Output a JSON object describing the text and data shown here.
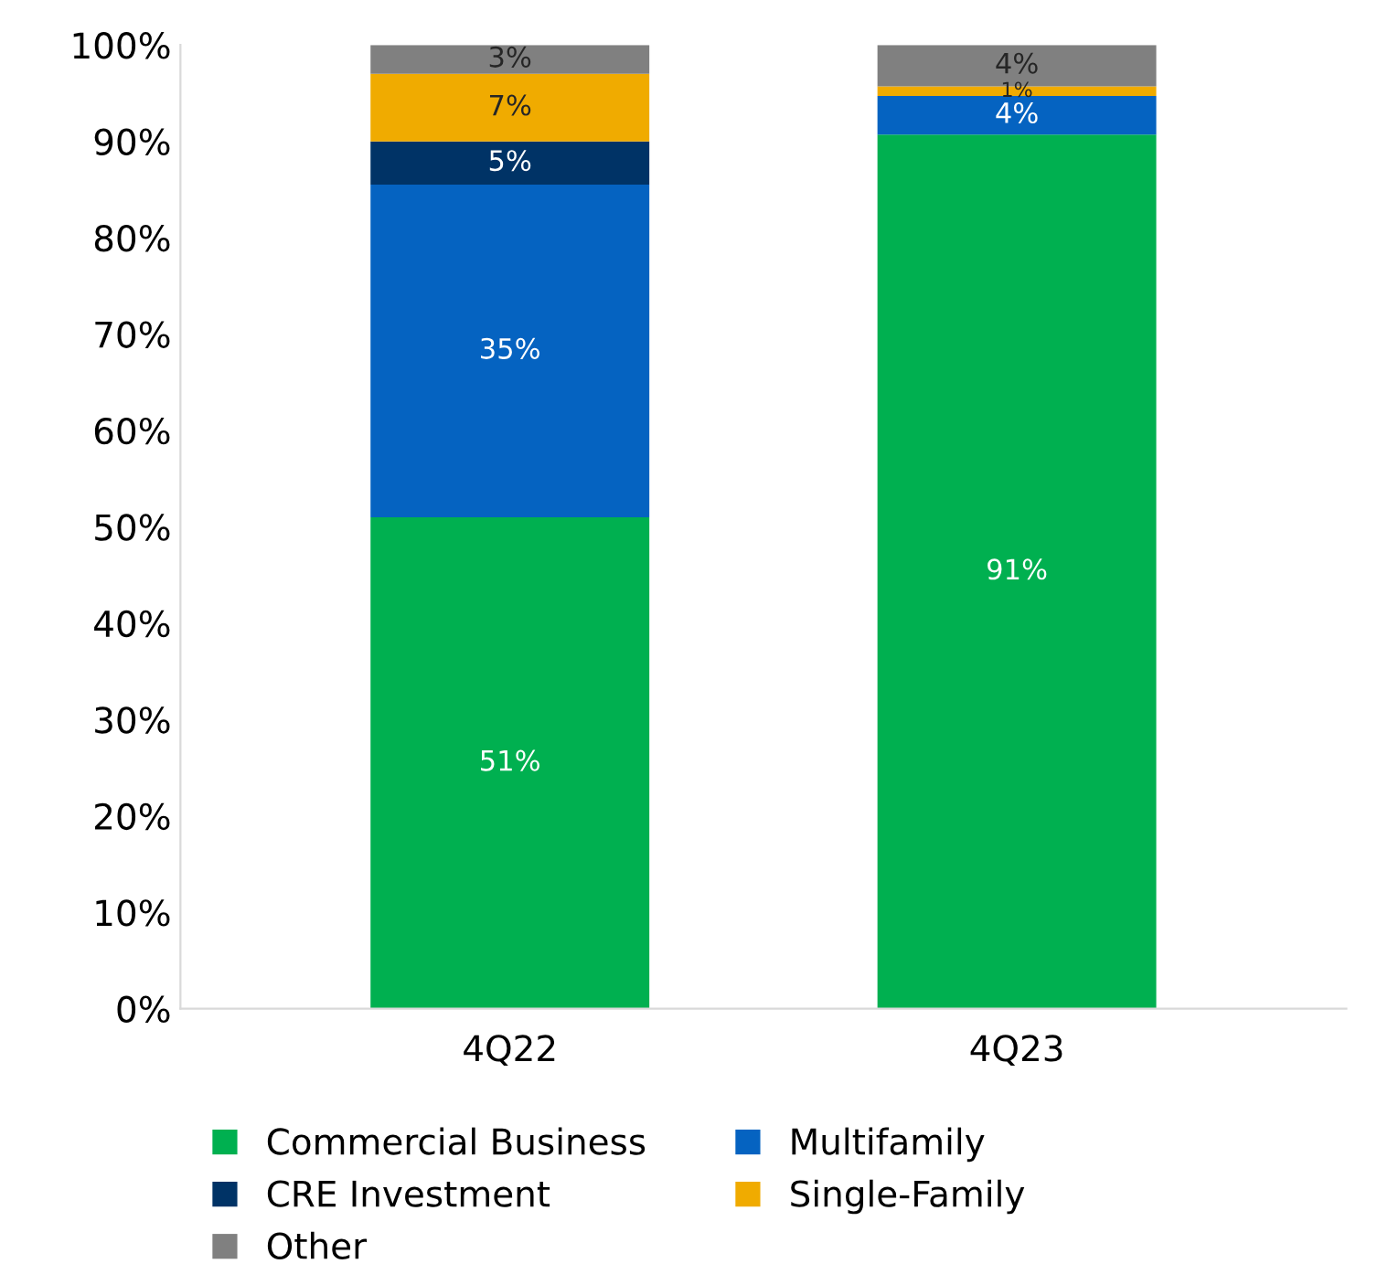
{
  "chart_data": {
    "type": "bar",
    "stacked": true,
    "categories": [
      "4Q22",
      "4Q23"
    ],
    "series": [
      {
        "name": "Commercial Business",
        "color": "#00b050",
        "values": [
          51,
          90.7
        ],
        "value_labels": [
          "51%",
          "91%"
        ]
      },
      {
        "name": "Multifamily",
        "color": "#0563c1",
        "values": [
          34.5,
          4
        ],
        "value_labels": [
          "35%",
          "4%"
        ]
      },
      {
        "name": "CRE Investment",
        "color": "#003366",
        "values": [
          4.5,
          0
        ],
        "value_labels": [
          "5%",
          null
        ]
      },
      {
        "name": "Single-Family",
        "color": "#f0ab00",
        "values": [
          7,
          1
        ],
        "value_labels": [
          "7%",
          "1%"
        ]
      },
      {
        "name": "Other",
        "color": "#808080",
        "values": [
          3,
          4.3
        ],
        "value_labels": [
          "3%",
          "4%"
        ]
      }
    ],
    "ylim": [
      0,
      100
    ],
    "yticks": [
      {
        "value": 0,
        "label": "0%"
      },
      {
        "value": 10,
        "label": "10%"
      },
      {
        "value": 20,
        "label": "20%"
      },
      {
        "value": 30,
        "label": "30%"
      },
      {
        "value": 40,
        "label": "40%"
      },
      {
        "value": 50,
        "label": "50%"
      },
      {
        "value": 60,
        "label": "60%"
      },
      {
        "value": 70,
        "label": "70%"
      },
      {
        "value": 80,
        "label": "80%"
      },
      {
        "value": 90,
        "label": "90%"
      },
      {
        "value": 100,
        "label": "100%"
      }
    ],
    "grid": false,
    "legend": "bottom"
  }
}
